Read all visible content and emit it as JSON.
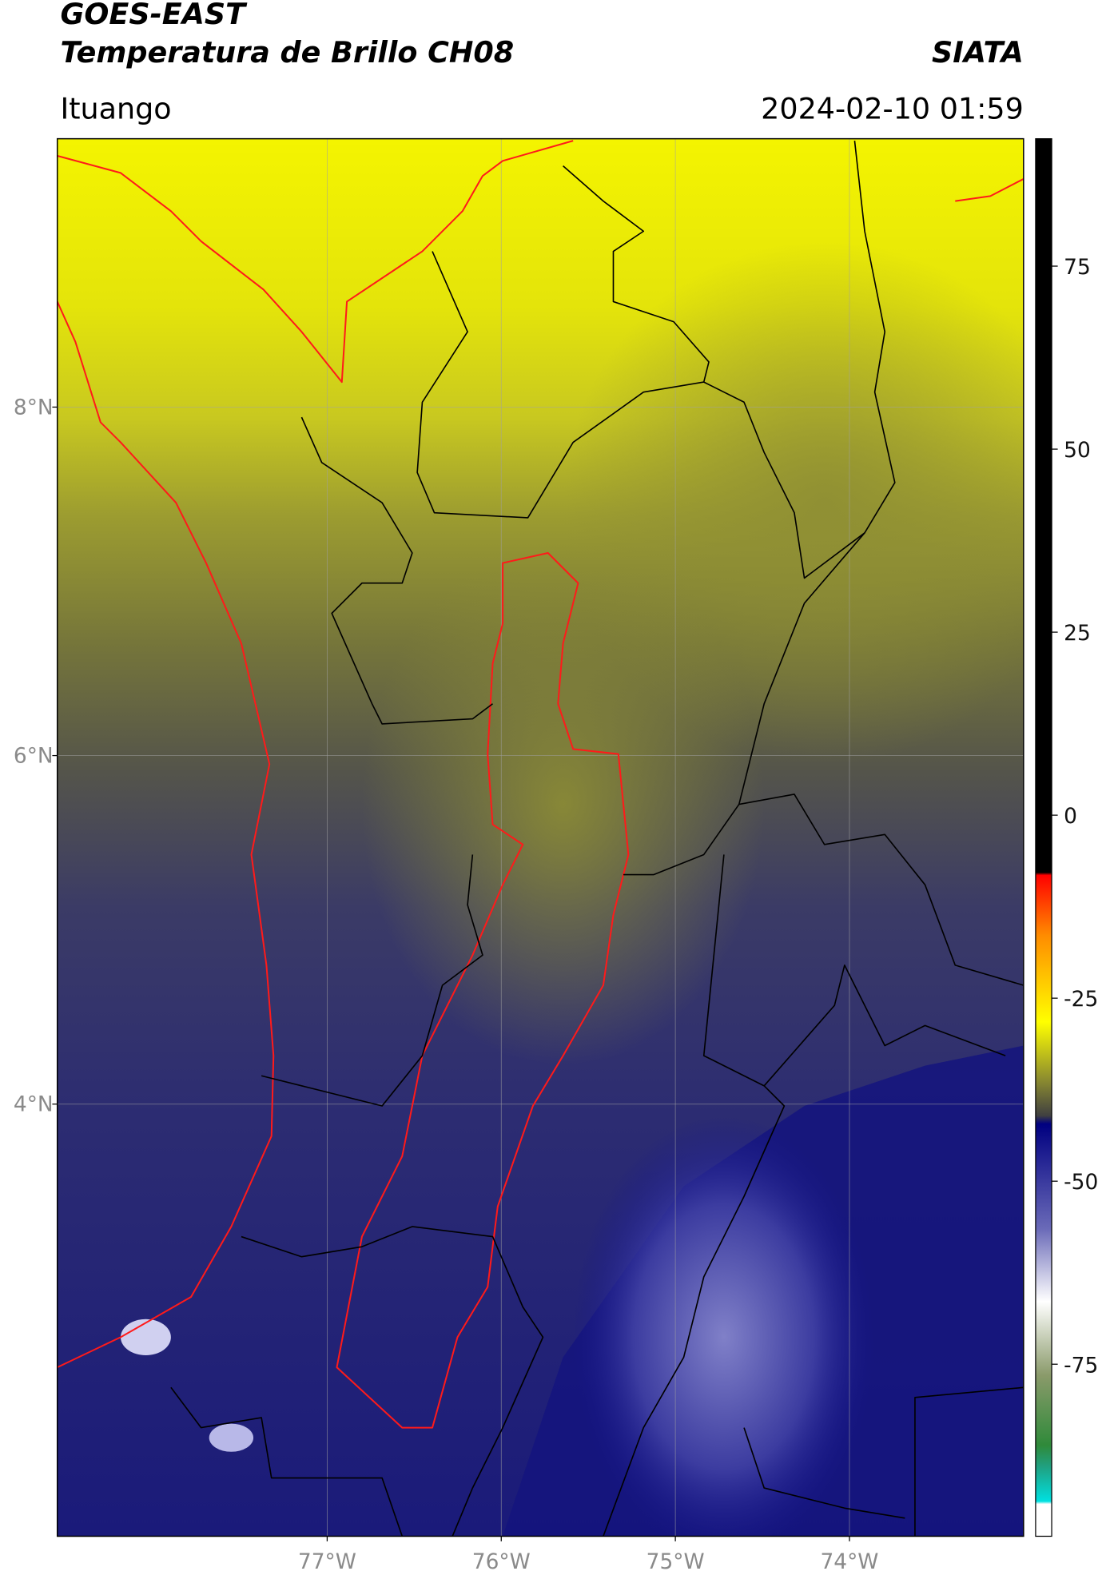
{
  "header": {
    "title": "GOES-EAST",
    "subtitle": "Temperatura de Brillo CH08",
    "source": "SIATA",
    "location": "Ituango",
    "datetime": "2024-02-10 01:59"
  },
  "map": {
    "xlim": [
      -78.55,
      -73.0
    ],
    "ylim": [
      1.52,
      9.54
    ],
    "xticks": [
      {
        "value": -77,
        "label": "77°W"
      },
      {
        "value": -76,
        "label": "76°W"
      },
      {
        "value": -75,
        "label": "75°W"
      },
      {
        "value": -74,
        "label": "74°W"
      }
    ],
    "yticks": [
      {
        "value": 8,
        "label": "8°N"
      },
      {
        "value": 6,
        "label": "6°N"
      },
      {
        "value": 4,
        "label": "4°N"
      }
    ],
    "grid": true
  },
  "colorbar": {
    "lim": [
      -98.5,
      92.4
    ],
    "ticks": [
      75,
      50,
      25,
      0,
      -25,
      -50,
      -75
    ]
  }
}
